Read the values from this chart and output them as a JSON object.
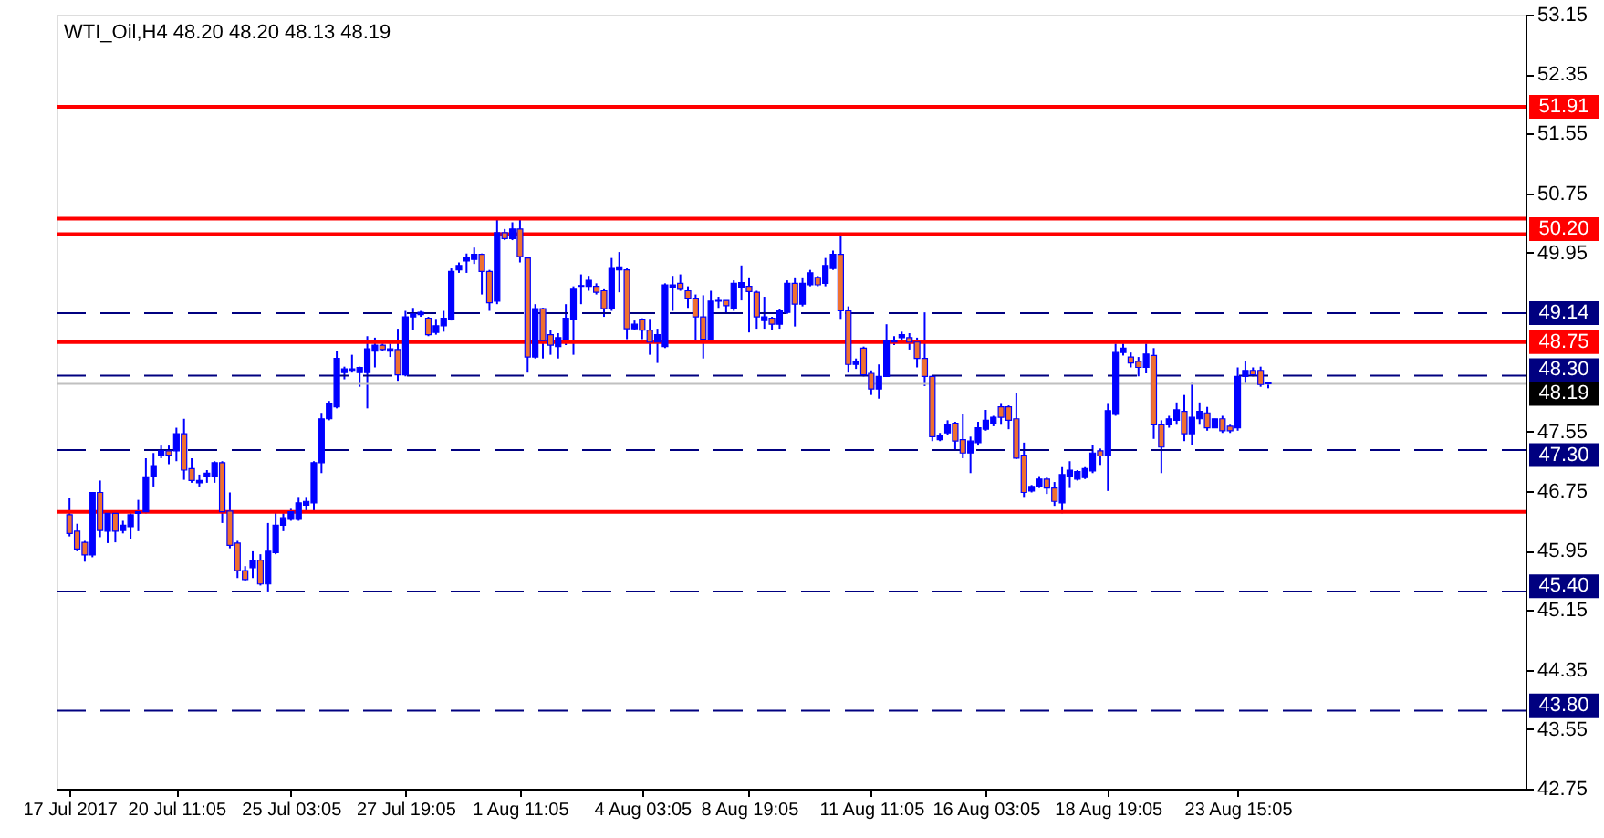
{
  "chart_data": {
    "type": "candlestick",
    "title": "WTI_Oil,H4  48.20 48.20 48.13 48.19",
    "categories": [
      "17 Jul 2017",
      null,
      null,
      null,
      null,
      null,
      null,
      null,
      null,
      null,
      null,
      null,
      null,
      null,
      "20 Jul 11:05",
      null,
      null,
      null,
      null,
      null,
      null,
      null,
      null,
      null,
      null,
      null,
      null,
      null,
      null,
      "25 Jul 03:05",
      null,
      null,
      null,
      null,
      null,
      null,
      null,
      null,
      null,
      null,
      null,
      null,
      null,
      null,
      "27 Jul 19:05",
      null,
      null,
      null,
      null,
      null,
      null,
      null,
      null,
      null,
      null,
      null,
      null,
      null,
      null,
      "1 Aug 11:05",
      null,
      null,
      null,
      null,
      null,
      null,
      null,
      null,
      null,
      null,
      null,
      null,
      null,
      null,
      null,
      "4 Aug 03:05",
      null,
      null,
      null,
      null,
      null,
      null,
      null,
      null,
      null,
      null,
      null,
      null,
      null,
      "8 Aug 19:05",
      null,
      null,
      null,
      null,
      null,
      null,
      null,
      null,
      null,
      null,
      null,
      null,
      null,
      null,
      null,
      "11 Aug 11:05",
      null,
      null,
      null,
      null,
      null,
      null,
      null,
      null,
      null,
      null,
      null,
      null,
      null,
      null,
      "16 Aug 03:05",
      null,
      null,
      null,
      null,
      null,
      null,
      null,
      null,
      null,
      null,
      null,
      null,
      null,
      null,
      null,
      "18 Aug 19:05",
      null,
      null,
      null,
      null,
      null,
      null,
      null,
      null,
      null,
      null,
      null,
      null,
      null,
      null,
      null,
      null,
      "23 Aug 15:05",
      null,
      null,
      null,
      null,
      null,
      null,
      null,
      null,
      null,
      null,
      null,
      null,
      null,
      null,
      null,
      null,
      null,
      null,
      null,
      null,
      null,
      null,
      null,
      null,
      null,
      null,
      null,
      null,
      null,
      null,
      null,
      null,
      null,
      null,
      null,
      null
    ],
    "ohlc": [
      [
        46.43,
        46.65,
        46.14,
        46.18
      ],
      [
        46.21,
        46.31,
        45.94,
        45.97
      ],
      [
        46.06,
        46.08,
        45.8,
        45.89
      ],
      [
        45.89,
        46.73,
        45.86,
        46.73
      ],
      [
        46.73,
        46.89,
        46.13,
        46.22
      ],
      [
        46.21,
        46.45,
        46.05,
        46.45
      ],
      [
        46.45,
        46.48,
        46.06,
        46.21
      ],
      [
        46.22,
        46.35,
        46.18,
        46.29
      ],
      [
        46.27,
        46.45,
        46.1,
        46.43
      ],
      [
        46.45,
        46.63,
        46.21,
        46.47
      ],
      [
        46.47,
        47.19,
        46.45,
        46.94
      ],
      [
        46.95,
        47.26,
        46.81,
        47.09
      ],
      [
        47.23,
        47.36,
        47.19,
        47.29
      ],
      [
        47.29,
        47.36,
        47.11,
        47.23
      ],
      [
        47.29,
        47.6,
        47.15,
        47.52
      ],
      [
        47.52,
        47.72,
        46.9,
        47.03
      ],
      [
        47.05,
        47.19,
        46.86,
        46.89
      ],
      [
        46.86,
        46.97,
        46.81,
        46.89
      ],
      [
        46.94,
        47.03,
        46.86,
        46.99
      ],
      [
        46.94,
        47.15,
        46.86,
        47.13
      ],
      [
        47.13,
        47.15,
        46.32,
        46.47
      ],
      [
        46.48,
        46.73,
        45.98,
        46.02
      ],
      [
        46.05,
        46.08,
        45.58,
        45.68
      ],
      [
        45.68,
        45.74,
        45.54,
        45.56
      ],
      [
        45.72,
        45.94,
        45.58,
        45.82
      ],
      [
        45.82,
        45.9,
        45.48,
        45.5
      ],
      [
        45.5,
        46.32,
        45.4,
        45.94
      ],
      [
        45.92,
        46.47,
        45.9,
        46.29
      ],
      [
        46.29,
        46.45,
        46.21,
        46.39
      ],
      [
        46.37,
        46.51,
        46.35,
        46.47
      ],
      [
        46.37,
        46.67,
        46.35,
        46.59
      ],
      [
        46.56,
        46.67,
        46.48,
        46.61
      ],
      [
        46.59,
        47.15,
        46.48,
        47.13
      ],
      [
        47.13,
        47.8,
        46.99,
        47.72
      ],
      [
        47.72,
        47.96,
        47.7,
        47.92
      ],
      [
        47.88,
        48.63,
        47.86,
        48.53
      ],
      [
        48.34,
        48.42,
        48.25,
        48.39
      ],
      [
        48.37,
        48.58,
        48.34,
        48.39
      ],
      [
        48.34,
        48.42,
        48.15,
        48.41
      ],
      [
        48.34,
        48.83,
        47.86,
        48.66
      ],
      [
        48.63,
        48.81,
        48.41,
        48.71
      ],
      [
        48.71,
        48.73,
        48.63,
        48.65
      ],
      [
        48.63,
        48.73,
        48.55,
        48.66
      ],
      [
        48.65,
        48.93,
        48.23,
        48.31
      ],
      [
        48.31,
        49.17,
        48.29,
        49.09
      ],
      [
        49.09,
        49.21,
        48.91,
        49.13
      ],
      [
        49.12,
        49.17,
        49.09,
        49.15
      ],
      [
        49.07,
        49.09,
        48.83,
        48.85
      ],
      [
        48.88,
        49.05,
        48.85,
        48.97
      ],
      [
        48.97,
        49.17,
        48.89,
        49.07
      ],
      [
        49.05,
        49.74,
        49.04,
        49.7
      ],
      [
        49.72,
        49.82,
        49.68,
        49.78
      ],
      [
        49.84,
        49.94,
        49.68,
        49.88
      ],
      [
        49.86,
        50.02,
        49.8,
        49.93
      ],
      [
        49.93,
        49.94,
        49.39,
        49.7
      ],
      [
        49.7,
        49.72,
        49.17,
        49.28
      ],
      [
        49.3,
        50.41,
        49.26,
        50.22
      ],
      [
        50.22,
        50.27,
        50.12,
        50.14
      ],
      [
        50.14,
        50.36,
        50.12,
        50.27
      ],
      [
        50.27,
        50.41,
        49.82,
        49.9
      ],
      [
        49.88,
        49.9,
        48.34,
        48.55
      ],
      [
        48.55,
        49.26,
        48.53,
        49.2
      ],
      [
        49.2,
        49.21,
        48.53,
        48.77
      ],
      [
        48.85,
        48.91,
        48.58,
        48.71
      ],
      [
        48.69,
        48.87,
        48.53,
        48.81
      ],
      [
        48.79,
        49.26,
        48.71,
        49.07
      ],
      [
        49.05,
        49.5,
        48.58,
        49.46
      ],
      [
        49.5,
        49.66,
        49.26,
        49.51
      ],
      [
        49.5,
        49.64,
        49.44,
        49.58
      ],
      [
        49.5,
        49.54,
        49.39,
        49.42
      ],
      [
        49.44,
        49.46,
        49.09,
        49.2
      ],
      [
        49.2,
        49.88,
        49.17,
        49.74
      ],
      [
        49.72,
        49.96,
        49.42,
        49.76
      ],
      [
        49.72,
        49.74,
        48.79,
        48.93
      ],
      [
        48.93,
        49.04,
        48.91,
        48.99
      ],
      [
        49.05,
        49.07,
        48.79,
        48.91
      ],
      [
        48.91,
        49.05,
        48.58,
        48.75
      ],
      [
        48.75,
        48.93,
        48.47,
        48.85
      ],
      [
        48.69,
        49.54,
        48.67,
        49.52
      ],
      [
        49.49,
        49.64,
        49.17,
        49.52
      ],
      [
        49.54,
        49.66,
        49.44,
        49.46
      ],
      [
        49.44,
        49.5,
        49.21,
        49.34
      ],
      [
        49.34,
        49.39,
        48.77,
        49.09
      ],
      [
        49.09,
        49.38,
        48.53,
        48.79
      ],
      [
        48.79,
        49.44,
        48.75,
        49.3
      ],
      [
        49.3,
        49.36,
        49.21,
        49.31
      ],
      [
        49.31,
        49.31,
        49.15,
        49.24
      ],
      [
        49.2,
        49.58,
        49.17,
        49.54
      ],
      [
        49.48,
        49.78,
        49.31,
        49.55
      ],
      [
        49.5,
        49.62,
        48.88,
        49.43
      ],
      [
        49.42,
        49.44,
        48.93,
        49.09
      ],
      [
        49.04,
        49.36,
        48.93,
        49.09
      ],
      [
        49.07,
        49.09,
        48.91,
        48.99
      ],
      [
        48.99,
        49.2,
        48.93,
        49.17
      ],
      [
        49.15,
        49.58,
        49.13,
        49.54
      ],
      [
        49.54,
        49.62,
        48.96,
        49.26
      ],
      [
        49.26,
        49.62,
        49.23,
        49.54
      ],
      [
        49.52,
        49.72,
        49.5,
        49.68
      ],
      [
        49.62,
        49.64,
        49.5,
        49.52
      ],
      [
        49.54,
        49.88,
        49.5,
        49.78
      ],
      [
        49.74,
        49.98,
        49.72,
        49.93
      ],
      [
        49.93,
        50.22,
        49.05,
        49.17
      ],
      [
        49.17,
        49.23,
        48.34,
        48.45
      ],
      [
        48.45,
        48.53,
        48.39,
        48.49
      ],
      [
        48.67,
        48.69,
        48.29,
        48.31
      ],
      [
        48.33,
        48.37,
        48.04,
        48.12
      ],
      [
        48.12,
        48.45,
        47.99,
        48.29
      ],
      [
        48.29,
        48.99,
        48.29,
        48.77
      ],
      [
        48.75,
        48.83,
        48.71,
        48.77
      ],
      [
        48.81,
        48.89,
        48.75,
        48.85
      ],
      [
        48.81,
        48.87,
        48.65,
        48.75
      ],
      [
        48.75,
        48.81,
        48.41,
        48.53
      ],
      [
        48.53,
        49.15,
        48.16,
        48.29
      ],
      [
        48.29,
        48.3,
        47.42,
        47.48
      ],
      [
        47.44,
        47.53,
        47.42,
        47.5
      ],
      [
        47.53,
        47.7,
        47.5,
        47.64
      ],
      [
        47.66,
        47.68,
        47.29,
        47.42
      ],
      [
        47.44,
        47.78,
        47.19,
        47.26
      ],
      [
        47.26,
        47.48,
        46.99,
        47.42
      ],
      [
        47.4,
        47.68,
        47.36,
        47.6
      ],
      [
        47.58,
        47.84,
        47.56,
        47.7
      ],
      [
        47.66,
        47.76,
        47.62,
        47.74
      ],
      [
        47.88,
        47.92,
        47.64,
        47.74
      ],
      [
        47.88,
        47.9,
        47.58,
        47.7
      ],
      [
        47.72,
        48.07,
        47.18,
        47.19
      ],
      [
        47.23,
        47.4,
        46.67,
        46.73
      ],
      [
        46.75,
        46.83,
        46.73,
        46.81
      ],
      [
        46.81,
        46.95,
        46.79,
        46.91
      ],
      [
        46.91,
        46.93,
        46.71,
        46.79
      ],
      [
        46.79,
        46.87,
        46.55,
        46.61
      ],
      [
        46.59,
        47.07,
        46.45,
        46.97
      ],
      [
        46.95,
        47.15,
        46.79,
        47.03
      ],
      [
        46.91,
        47.03,
        46.89,
        47.01
      ],
      [
        46.93,
        47.07,
        46.91,
        47.05
      ],
      [
        47.02,
        47.37,
        46.99,
        47.26
      ],
      [
        47.29,
        47.32,
        47.1,
        47.22
      ],
      [
        47.22,
        47.92,
        46.75,
        47.83
      ],
      [
        47.78,
        48.73,
        47.76,
        48.61
      ],
      [
        48.61,
        48.73,
        48.57,
        48.67
      ],
      [
        48.55,
        48.61,
        48.41,
        48.47
      ],
      [
        48.49,
        48.55,
        48.29,
        48.41
      ],
      [
        48.41,
        48.73,
        48.33,
        48.59
      ],
      [
        48.57,
        48.67,
        47.45,
        47.64
      ],
      [
        47.64,
        47.7,
        46.99,
        47.34
      ],
      [
        47.64,
        47.76,
        47.6,
        47.72
      ],
      [
        47.7,
        47.94,
        47.64,
        47.84
      ],
      [
        47.82,
        48.04,
        47.42,
        47.52
      ],
      [
        47.52,
        48.2,
        47.37,
        47.74
      ],
      [
        47.72,
        47.94,
        47.64,
        47.82
      ],
      [
        47.8,
        47.88,
        47.56,
        47.6
      ],
      [
        47.6,
        47.72,
        47.6,
        47.72
      ],
      [
        47.72,
        47.76,
        47.53,
        47.56
      ],
      [
        47.62,
        47.64,
        47.53,
        47.56
      ],
      [
        47.6,
        48.41,
        47.56,
        48.29
      ],
      [
        48.29,
        48.49,
        48.2,
        48.37
      ],
      [
        48.37,
        48.41,
        48.29,
        48.31
      ],
      [
        48.37,
        48.42,
        48.15,
        48.18
      ],
      [
        48.2,
        48.2,
        48.13,
        48.19
      ],
      null,
      null,
      null,
      null,
      null,
      null,
      null,
      null,
      null,
      null,
      null,
      null,
      null,
      null,
      null,
      null,
      null,
      null,
      null,
      null,
      null,
      null,
      null,
      null,
      null,
      null,
      null,
      null,
      null,
      null,
      null,
      null
    ],
    "ylim": [
      42.75,
      53.15
    ],
    "yticks": [
      42.75,
      43.55,
      44.35,
      45.15,
      45.95,
      46.75,
      47.55,
      49.95,
      50.75,
      51.55,
      52.35,
      53.15
    ],
    "ref_lines": [
      {
        "axis": "y",
        "value": 51.91,
        "label": "51.91",
        "color": "#ff0000",
        "line_style": "solid"
      },
      {
        "axis": "y",
        "value": 50.2,
        "label": "50.20",
        "color": "#ff0000",
        "line_style": "solid"
      },
      {
        "axis": "y",
        "value": 48.75,
        "label": "48.75",
        "color": "#ff0000",
        "line_style": "solid"
      },
      {
        "axis": "y",
        "value": 50.41,
        "color": "#ff0000",
        "line_style": "solid"
      },
      {
        "axis": "y",
        "value": 46.47,
        "color": "#ff0000",
        "line_style": "solid"
      },
      {
        "axis": "y",
        "value": 48.19,
        "label": "48.19",
        "color": "#c0c0c0",
        "line_style": "solid"
      },
      {
        "axis": "y",
        "value": 49.14,
        "label": "49.14",
        "color": "#000080",
        "line_style": "dashed"
      },
      {
        "axis": "y",
        "value": 48.3,
        "label": "48.30",
        "color": "#000080",
        "line_style": "dashed"
      },
      {
        "axis": "y",
        "value": 47.3,
        "label": "47.30",
        "color": "#000080",
        "line_style": "dashed"
      },
      {
        "axis": "y",
        "value": 45.4,
        "label": "45.40",
        "color": "#000080",
        "line_style": "dashed"
      },
      {
        "axis": "y",
        "value": 43.8,
        "label": "43.80",
        "color": "#000080",
        "line_style": "dashed"
      }
    ]
  }
}
